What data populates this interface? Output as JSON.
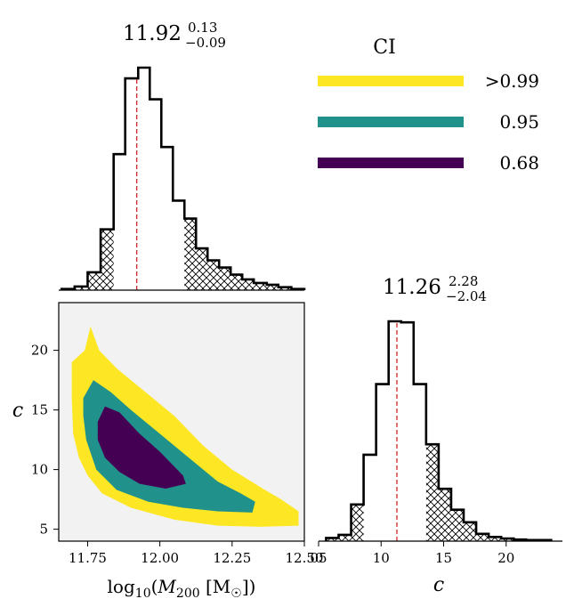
{
  "chart_data": [
    {
      "type": "bar",
      "panel": "marginal-log-mass",
      "title": {
        "value": "11.92",
        "upper": "0.13",
        "lower": "−0.09"
      },
      "median": 11.92,
      "xlim": [
        11.65,
        12.5
      ],
      "bin_edges": [
        11.66,
        11.705,
        11.75,
        11.795,
        11.84,
        11.88,
        11.925,
        11.965,
        12.005,
        12.045,
        12.085,
        12.125,
        12.165,
        12.205,
        12.245,
        12.285,
        12.325,
        12.37,
        12.41,
        12.455,
        12.5
      ],
      "values": [
        0.2,
        0.6,
        3.0,
        10.2,
        22.8,
        35.5,
        37.3,
        32.0,
        24.0,
        15.0,
        12.0,
        7.0,
        5.0,
        3.8,
        2.6,
        1.8,
        1.2,
        0.9,
        0.5,
        0.2
      ],
      "ci_68": [
        11.84,
        12.085
      ]
    },
    {
      "type": "bar",
      "panel": "marginal-c",
      "title": {
        "value": "11.26",
        "upper": "2.28",
        "lower": "−2.04"
      },
      "median": 11.26,
      "xlim": [
        5,
        24.5
      ],
      "xticks": [
        "05",
        "10",
        "15",
        "20"
      ],
      "xlabel": "c",
      "bin_edges": [
        5.6,
        6.6,
        7.6,
        8.6,
        9.6,
        10.6,
        11.6,
        12.6,
        13.6,
        14.6,
        15.6,
        16.6,
        17.6,
        18.6,
        19.6,
        20.6,
        21.6,
        22.6,
        23.6
      ],
      "values": [
        0.6,
        1.2,
        7.0,
        16.5,
        30.0,
        42.0,
        41.8,
        30.0,
        18.5,
        10.0,
        6.0,
        3.6,
        1.4,
        0.8,
        0.5,
        0.3,
        0.2,
        0.2
      ],
      "ci_68": [
        8.6,
        13.6
      ]
    },
    {
      "type": "contour",
      "panel": "joint",
      "xlabel": "log10(M200 [M☉])",
      "ylabel": "c",
      "xlim": [
        11.65,
        12.5
      ],
      "ylim": [
        4,
        24
      ],
      "xticks": [
        "11.75",
        "12.00",
        "12.25",
        "12.50"
      ],
      "yticks": [
        "5",
        "10",
        "15",
        "20"
      ],
      "levels": [
        {
          "label": ">0.99",
          "color": "#fde725",
          "outline": [
            [
              11.695,
              19
            ],
            [
              11.74,
              20
            ],
            [
              11.76,
              22
            ],
            [
              11.79,
              20
            ],
            [
              11.85,
              18.5
            ],
            [
              11.95,
              16.5
            ],
            [
              12.05,
              14.5
            ],
            [
              12.15,
              12
            ],
            [
              12.25,
              10
            ],
            [
              12.35,
              8.5
            ],
            [
              12.42,
              7.5
            ],
            [
              12.48,
              6.5
            ],
            [
              12.48,
              5.3
            ],
            [
              12.35,
              5.2
            ],
            [
              12.2,
              5.3
            ],
            [
              12.05,
              5.8
            ],
            [
              11.9,
              6.8
            ],
            [
              11.8,
              8
            ],
            [
              11.75,
              9.5
            ],
            [
              11.72,
              11
            ],
            [
              11.7,
              13
            ],
            [
              11.695,
              16
            ]
          ]
        },
        {
          "label": "0.95",
          "color": "#21918c",
          "outline": [
            [
              11.735,
              16
            ],
            [
              11.77,
              17.5
            ],
            [
              11.83,
              16.5
            ],
            [
              11.9,
              15
            ],
            [
              12.0,
              13
            ],
            [
              12.1,
              11
            ],
            [
              12.2,
              9
            ],
            [
              12.28,
              8
            ],
            [
              12.33,
              7.3
            ],
            [
              12.32,
              6.4
            ],
            [
              12.2,
              6.5
            ],
            [
              12.08,
              6.8
            ],
            [
              11.96,
              7.3
            ],
            [
              11.85,
              8.3
            ],
            [
              11.78,
              10
            ],
            [
              11.745,
              12.5
            ],
            [
              11.735,
              14.5
            ]
          ]
        },
        {
          "label": "0.68",
          "color": "#440154",
          "outline": [
            [
              11.785,
              14
            ],
            [
              11.81,
              15.3
            ],
            [
              11.86,
              14.8
            ],
            [
              11.93,
              13
            ],
            [
              12.0,
              11.5
            ],
            [
              12.08,
              9.5
            ],
            [
              12.09,
              8.8
            ],
            [
              12.02,
              8.4
            ],
            [
              11.93,
              8.8
            ],
            [
              11.86,
              9.8
            ],
            [
              11.81,
              11
            ],
            [
              11.785,
              12.5
            ]
          ]
        }
      ]
    }
  ],
  "legend": {
    "title": "CI",
    "items": [
      {
        "label": ">0.99",
        "color": "#fde725"
      },
      {
        "label": "0.95",
        "color": "#21918c"
      },
      {
        "label": "0.68",
        "color": "#440154"
      }
    ]
  }
}
